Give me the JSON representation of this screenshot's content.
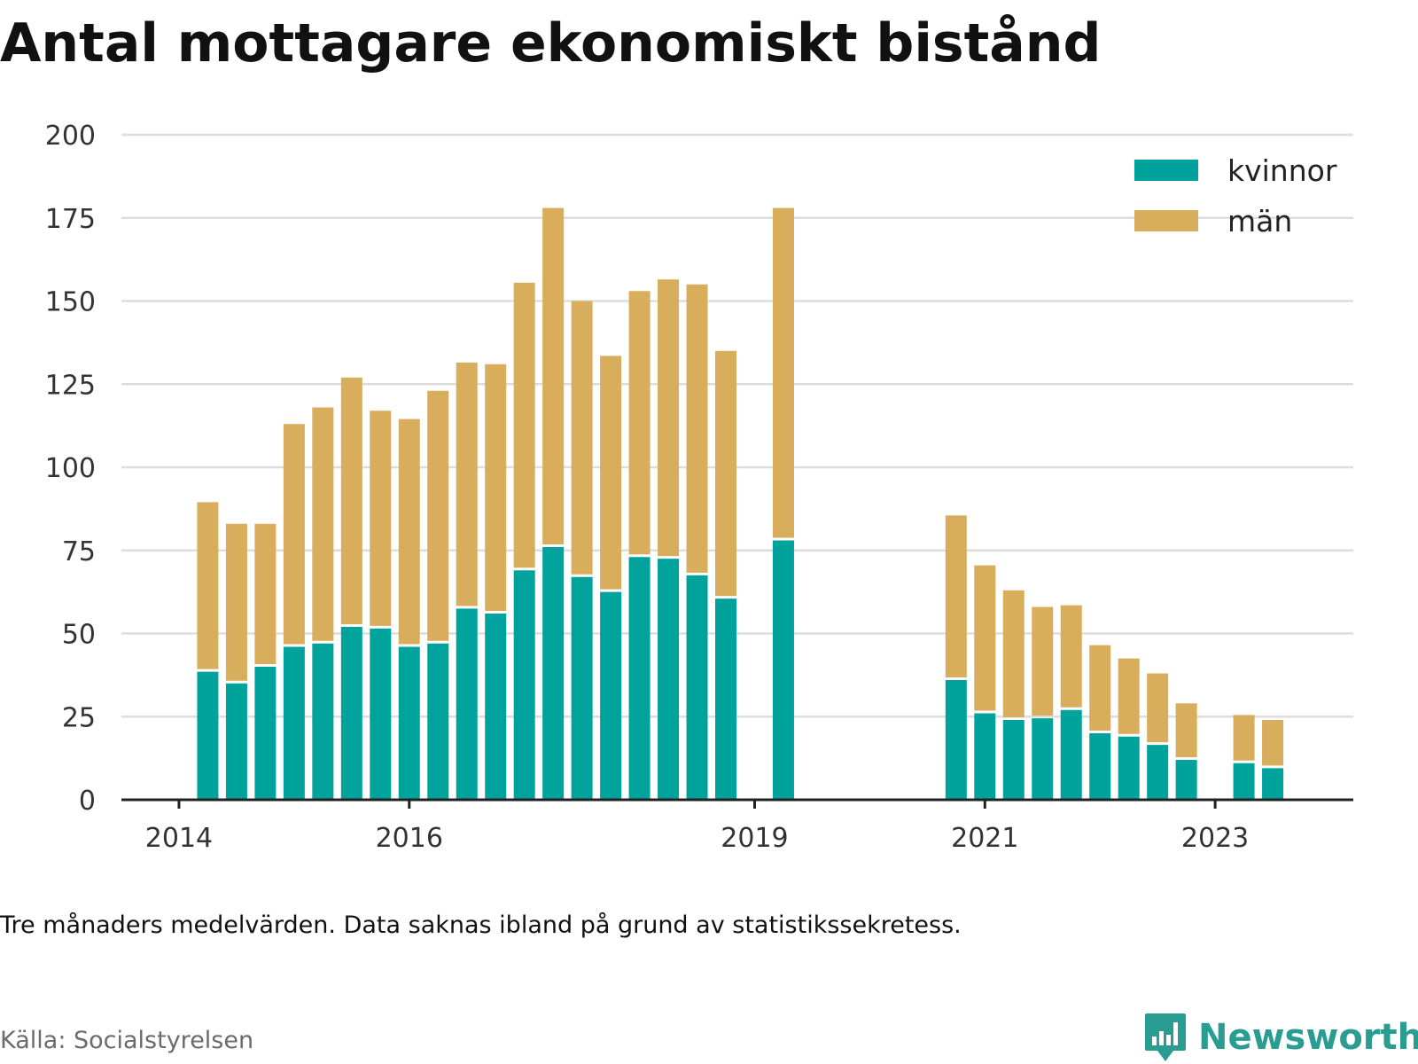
{
  "title": "Antal mottagare ekonomiskt bistånd",
  "note": "Tre månaders medelvärden. Data saknas ibland på grund av statistikssekretess.",
  "source": "Källa: Socialstyrelsen",
  "brand": "Newsworthy",
  "colors": {
    "kvinnor": "#00a39b",
    "man": "#d8ad5b",
    "grid": "#dddddd",
    "axis": "#222222",
    "brand": "#2a9d93"
  },
  "chart_data": {
    "type": "bar",
    "stacked": true,
    "x_ticks": [
      {
        "label": "2014",
        "value": 2014.0
      },
      {
        "label": "2016",
        "value": 2016.0
      },
      {
        "label": "2019",
        "value": 2019.0
      },
      {
        "label": "2021",
        "value": 2021.0
      },
      {
        "label": "2023",
        "value": 2023.0
      }
    ],
    "x_range": [
      2013.5,
      2024.2
    ],
    "y_ticks": [
      0,
      25,
      50,
      75,
      100,
      125,
      150,
      175,
      200
    ],
    "ylim": [
      0,
      200
    ],
    "grid": true,
    "legend_position": "top-right",
    "x": [
      2014.25,
      2014.5,
      2014.75,
      2015.0,
      2015.25,
      2015.5,
      2015.75,
      2016.0,
      2016.25,
      2016.5,
      2016.75,
      2017.0,
      2017.25,
      2017.5,
      2017.75,
      2018.0,
      2018.25,
      2018.5,
      2018.75,
      2019.25,
      2020.75,
      2021.0,
      2021.25,
      2021.5,
      2021.75,
      2022.0,
      2022.25,
      2022.5,
      2022.75,
      2023.25,
      2023.5
    ],
    "series": [
      {
        "name": "kvinnor",
        "values": [
          38.5,
          35,
          40,
          46,
          47,
          52,
          51.5,
          46,
          47,
          57.5,
          56,
          69,
          76,
          67,
          62.5,
          73,
          72.5,
          67.5,
          60.5,
          78,
          36,
          26,
          24,
          24.5,
          27,
          20,
          19,
          16.5,
          12,
          11,
          9.5
        ]
      },
      {
        "name": "män",
        "values": [
          51,
          48,
          43,
          67,
          71,
          75,
          65.5,
          68.5,
          76,
          74,
          75,
          86.5,
          102,
          83,
          71,
          80,
          84,
          87.5,
          74.5,
          100,
          49.5,
          44.5,
          39,
          33.5,
          31.5,
          26.5,
          23.5,
          21.5,
          17,
          14.5,
          14.5
        ]
      }
    ]
  }
}
